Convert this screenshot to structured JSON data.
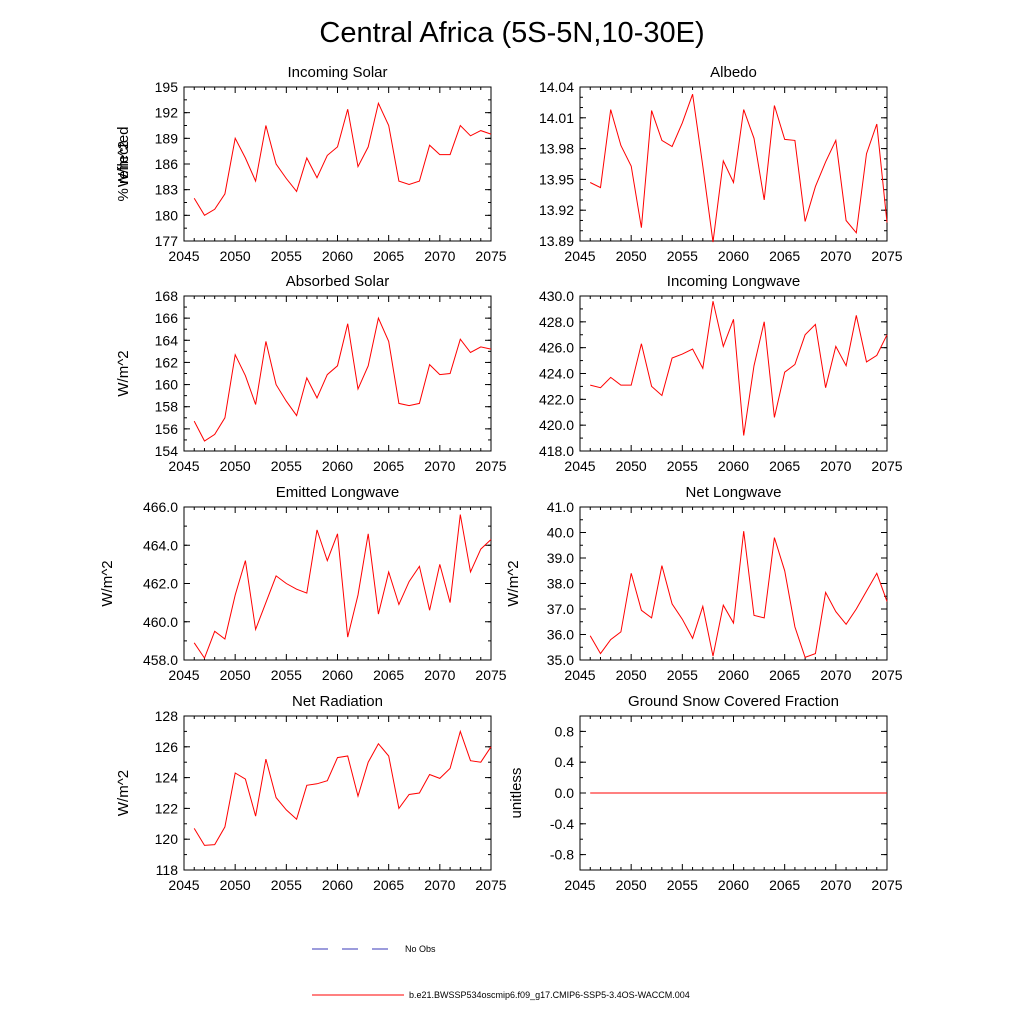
{
  "title": "Central Africa (5S-5N,10-30E)",
  "chart_data": [
    {
      "type": "line",
      "title": "Incoming Solar",
      "ylabel": "W/m^2",
      "ylabel_side": "left",
      "xlim": [
        2045,
        2075
      ],
      "ylim": [
        177,
        195
      ],
      "yticks": [
        "177",
        "180",
        "183",
        "186",
        "189",
        "192",
        "195"
      ],
      "xticks": [
        "2045",
        "2050",
        "2055",
        "2060",
        "2065",
        "2070",
        "2075"
      ],
      "x": [
        2046,
        2047,
        2048,
        2049,
        2050,
        2051,
        2052,
        2053,
        2054,
        2055,
        2056,
        2057,
        2058,
        2059,
        2060,
        2061,
        2062,
        2063,
        2064,
        2065,
        2066,
        2067,
        2068,
        2069,
        2070,
        2071,
        2072,
        2073,
        2074,
        2075
      ],
      "values": [
        182.0,
        180.0,
        180.7,
        182.5,
        189.0,
        186.7,
        184.0,
        190.5,
        186.0,
        184.3,
        182.8,
        186.7,
        184.4,
        187.0,
        188.0,
        192.4,
        185.7,
        188.0,
        193.1,
        190.5,
        184.0,
        183.6,
        184.0,
        188.2,
        187.1,
        187.1,
        190.5,
        189.3,
        189.9,
        189.5
      ]
    },
    {
      "type": "line",
      "title": "Albedo",
      "ylabel": "% reflected",
      "ylabel_side": "left",
      "xlim": [
        2045,
        2075
      ],
      "ylim": [
        13.89,
        14.04
      ],
      "yticks": [
        "13.89",
        "13.92",
        "13.95",
        "13.98",
        "14.01",
        "14.04"
      ],
      "xticks": [
        "2045",
        "2050",
        "2055",
        "2060",
        "2065",
        "2070",
        "2075"
      ],
      "x": [
        2046,
        2047,
        2048,
        2049,
        2050,
        2051,
        2052,
        2053,
        2054,
        2055,
        2056,
        2057,
        2058,
        2059,
        2060,
        2061,
        2062,
        2063,
        2064,
        2065,
        2066,
        2067,
        2068,
        2069,
        2070,
        2071,
        2072,
        2073,
        2074,
        2075
      ],
      "values": [
        13.947,
        13.942,
        14.018,
        13.983,
        13.963,
        13.903,
        14.017,
        13.988,
        13.982,
        14.005,
        14.033,
        13.963,
        13.889,
        13.968,
        13.947,
        14.018,
        13.99,
        13.93,
        14.022,
        13.989,
        13.988,
        13.909,
        13.943,
        13.967,
        13.988,
        13.91,
        13.898,
        13.975,
        14.004,
        13.908
      ]
    },
    {
      "type": "line",
      "title": "Absorbed Solar",
      "ylabel": "W/m^2",
      "ylabel_side": "left",
      "xlim": [
        2045,
        2075
      ],
      "ylim": [
        154,
        168
      ],
      "yticks": [
        "154",
        "156",
        "158",
        "160",
        "162",
        "164",
        "166",
        "168"
      ],
      "xticks": [
        "2045",
        "2050",
        "2055",
        "2060",
        "2065",
        "2070",
        "2075"
      ],
      "x": [
        2046,
        2047,
        2048,
        2049,
        2050,
        2051,
        2052,
        2053,
        2054,
        2055,
        2056,
        2057,
        2058,
        2059,
        2060,
        2061,
        2062,
        2063,
        2064,
        2065,
        2066,
        2067,
        2068,
        2069,
        2070,
        2071,
        2072,
        2073,
        2074,
        2075
      ],
      "values": [
        156.7,
        154.9,
        155.5,
        157.0,
        162.7,
        160.8,
        158.2,
        163.9,
        160.0,
        158.5,
        157.2,
        160.6,
        158.8,
        160.9,
        161.7,
        165.5,
        159.6,
        161.7,
        166.0,
        163.9,
        158.3,
        158.1,
        158.3,
        161.8,
        160.9,
        161.0,
        164.1,
        162.9,
        163.4,
        163.2
      ]
    },
    {
      "type": "line",
      "title": "Incoming Longwave",
      "ylabel": "",
      "ylabel_side": "left",
      "xlim": [
        2045,
        2075
      ],
      "ylim": [
        418.0,
        430.0
      ],
      "yticks": [
        "418.0",
        "420.0",
        "422.0",
        "424.0",
        "426.0",
        "428.0",
        "430.0"
      ],
      "xticks": [
        "2045",
        "2050",
        "2055",
        "2060",
        "2065",
        "2070",
        "2075"
      ],
      "x": [
        2046,
        2047,
        2048,
        2049,
        2050,
        2051,
        2052,
        2053,
        2054,
        2055,
        2056,
        2057,
        2058,
        2059,
        2060,
        2061,
        2062,
        2063,
        2064,
        2065,
        2066,
        2067,
        2068,
        2069,
        2070,
        2071,
        2072,
        2073,
        2074,
        2075
      ],
      "values": [
        423.1,
        422.9,
        423.7,
        423.1,
        423.1,
        426.3,
        423.0,
        422.3,
        425.2,
        425.5,
        425.9,
        424.4,
        429.6,
        426.1,
        428.2,
        419.2,
        424.6,
        428.0,
        420.6,
        424.1,
        424.7,
        427.0,
        427.8,
        422.9,
        426.1,
        424.6,
        428.5,
        424.9,
        425.4,
        427.0
      ]
    },
    {
      "type": "line",
      "title": "Emitted Longwave",
      "ylabel": "W/m^2",
      "ylabel_side": "left",
      "xlim": [
        2045,
        2075
      ],
      "ylim": [
        458.0,
        466.0
      ],
      "yticks": [
        "458.0",
        "460.0",
        "462.0",
        "464.0",
        "466.0"
      ],
      "xticks": [
        "2045",
        "2050",
        "2055",
        "2060",
        "2065",
        "2070",
        "2075"
      ],
      "x": [
        2046,
        2047,
        2048,
        2049,
        2050,
        2051,
        2052,
        2053,
        2054,
        2055,
        2056,
        2057,
        2058,
        2059,
        2060,
        2061,
        2062,
        2063,
        2064,
        2065,
        2066,
        2067,
        2068,
        2069,
        2070,
        2071,
        2072,
        2073,
        2074,
        2075
      ],
      "values": [
        458.9,
        458.1,
        459.5,
        459.1,
        461.4,
        463.2,
        459.6,
        461.0,
        462.4,
        462.0,
        461.7,
        461.5,
        464.8,
        463.2,
        464.6,
        459.2,
        461.4,
        464.6,
        460.4,
        462.6,
        460.9,
        462.1,
        462.9,
        460.6,
        463.0,
        461.0,
        465.6,
        462.6,
        463.8,
        464.3
      ]
    },
    {
      "type": "line",
      "title": "Net Longwave",
      "ylabel": "W/m^2",
      "ylabel_side": "left",
      "xlim": [
        2045,
        2075
      ],
      "ylim": [
        35.0,
        41.0
      ],
      "yticks": [
        "35.0",
        "36.0",
        "37.0",
        "38.0",
        "39.0",
        "40.0",
        "41.0"
      ],
      "xticks": [
        "2045",
        "2050",
        "2055",
        "2060",
        "2065",
        "2070",
        "2075"
      ],
      "x": [
        2046,
        2047,
        2048,
        2049,
        2050,
        2051,
        2052,
        2053,
        2054,
        2055,
        2056,
        2057,
        2058,
        2059,
        2060,
        2061,
        2062,
        2063,
        2064,
        2065,
        2066,
        2067,
        2068,
        2069,
        2070,
        2071,
        2072,
        2073,
        2074,
        2075
      ],
      "values": [
        35.95,
        35.25,
        35.8,
        36.1,
        38.4,
        36.95,
        36.65,
        38.7,
        37.2,
        36.6,
        35.85,
        37.1,
        35.15,
        37.15,
        36.45,
        40.05,
        36.75,
        36.65,
        39.8,
        38.5,
        36.3,
        35.1,
        35.25,
        37.65,
        36.9,
        36.4,
        37.0,
        37.7,
        38.4,
        37.3
      ]
    },
    {
      "type": "line",
      "title": "Net Radiation",
      "ylabel": "W/m^2",
      "ylabel_side": "left",
      "xlim": [
        2045,
        2075
      ],
      "ylim": [
        118,
        128
      ],
      "yticks": [
        "118",
        "120",
        "122",
        "124",
        "126",
        "128"
      ],
      "xticks": [
        "2045",
        "2050",
        "2055",
        "2060",
        "2065",
        "2070",
        "2075"
      ],
      "x": [
        2046,
        2047,
        2048,
        2049,
        2050,
        2051,
        2052,
        2053,
        2054,
        2055,
        2056,
        2057,
        2058,
        2059,
        2060,
        2061,
        2062,
        2063,
        2064,
        2065,
        2066,
        2067,
        2068,
        2069,
        2070,
        2071,
        2072,
        2073,
        2074,
        2075
      ],
      "values": [
        120.7,
        119.6,
        119.65,
        120.8,
        124.3,
        123.9,
        121.5,
        125.2,
        122.7,
        121.9,
        121.3,
        123.5,
        123.6,
        123.8,
        125.3,
        125.4,
        122.8,
        125.0,
        126.2,
        125.4,
        122.0,
        122.9,
        123.0,
        124.2,
        123.95,
        124.6,
        127.0,
        125.1,
        125.0,
        126.0
      ]
    },
    {
      "type": "line",
      "title": "Ground Snow Covered Fraction",
      "ylabel": "unitless",
      "ylabel_side": "left",
      "xlim": [
        2045,
        2075
      ],
      "ylim": [
        -1.0,
        1.0
      ],
      "yticks": [
        "-0.8",
        "-0.4",
        "0.0",
        "0.4",
        "0.8"
      ],
      "xticks": [
        "2045",
        "2050",
        "2055",
        "2060",
        "2065",
        "2070",
        "2075"
      ],
      "x": [
        2046,
        2047,
        2048,
        2049,
        2050,
        2051,
        2052,
        2053,
        2054,
        2055,
        2056,
        2057,
        2058,
        2059,
        2060,
        2061,
        2062,
        2063,
        2064,
        2065,
        2066,
        2067,
        2068,
        2069,
        2070,
        2071,
        2072,
        2073,
        2074,
        2075
      ],
      "values": [
        0,
        0,
        0,
        0,
        0,
        0,
        0,
        0,
        0,
        0,
        0,
        0,
        0,
        0,
        0,
        0,
        0,
        0,
        0,
        0,
        0,
        0,
        0,
        0,
        0,
        0,
        0,
        0,
        0,
        0
      ]
    }
  ],
  "legend": {
    "obs_label": "No Obs",
    "obs_color": "#3a3ab8",
    "model_label": "b.e21.BWSSP534oscmip6.f09_g17.CMIP6-SSP5-3.4OS-WACCM.004",
    "model_color": "#ff0000"
  },
  "colors": {
    "series": "#ff0000",
    "axes": "#000000"
  }
}
